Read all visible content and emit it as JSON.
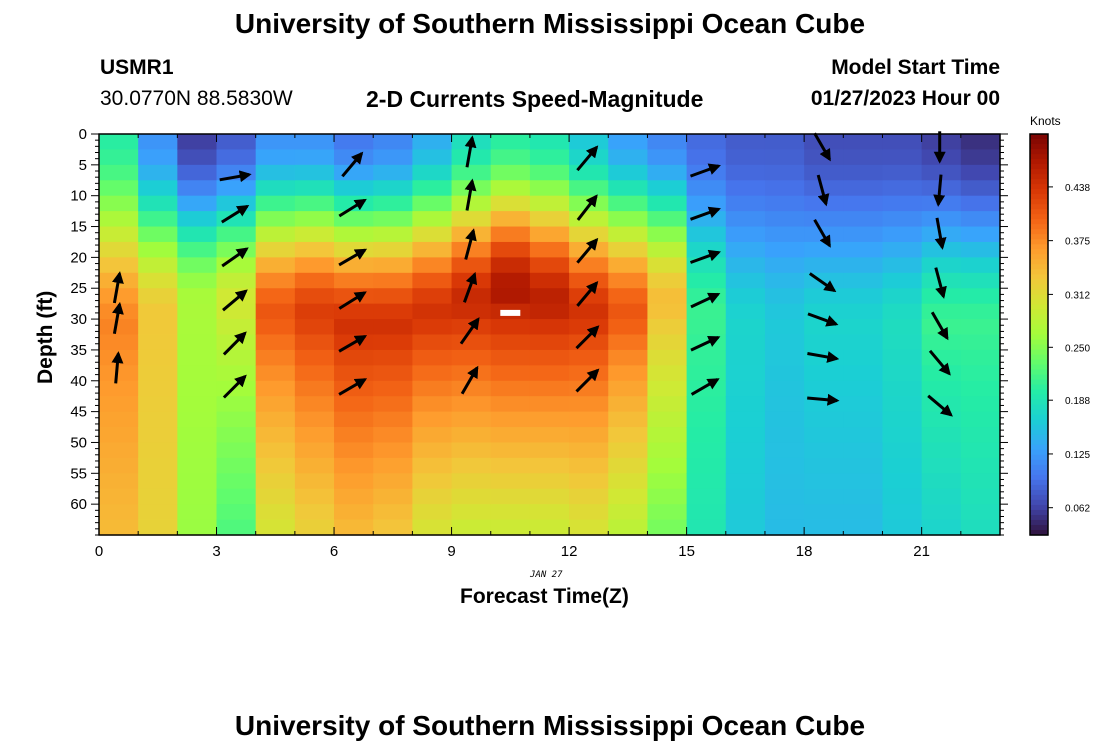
{
  "header": {
    "title": "University of Southern Mississippi Ocean Cube",
    "station_id": "USMR1",
    "coords": "30.0770N  88.5830W",
    "plot_title": "2-D Currents Speed-Magnitude",
    "model_start_label": "Model Start Time",
    "model_start_value": "01/27/2023 Hour 00",
    "date_note": "JAN 27",
    "footer_title": "University of Southern Mississippi Ocean Cube"
  },
  "colors": {
    "colormap": [
      "#30123b",
      "#4145ab",
      "#4675ed",
      "#39a2fc",
      "#1bcfd4",
      "#24eca6",
      "#61fc6c",
      "#a4fc3b",
      "#d1e834",
      "#f3c63a",
      "#fe9b2d",
      "#f36315",
      "#d93806",
      "#b11901",
      "#7a0403"
    ],
    "arrow": "#000000",
    "marker": "#ffffff"
  },
  "chart_data": {
    "type": "heatmap",
    "xlabel": "Forecast Time(Z)",
    "ylabel": "Depth (ft)",
    "xlim": [
      0,
      23
    ],
    "ylim": [
      0,
      65
    ],
    "y_inverted": true,
    "x_ticks": [
      0,
      3,
      6,
      9,
      12,
      15,
      18,
      21
    ],
    "y_ticks": [
      0,
      5,
      10,
      15,
      20,
      25,
      30,
      35,
      40,
      45,
      50,
      55,
      60
    ],
    "colorbar": {
      "title": "Knots",
      "range": [
        0.03,
        0.5
      ],
      "ticks": [
        "0.062",
        "0.125",
        "0.188",
        "0.250",
        "0.312",
        "0.375",
        "0.438"
      ]
    },
    "speed_profiles": [
      {
        "hour": 0,
        "top": 0.2,
        "core": 0.38,
        "core_depth": 32,
        "bottom": 0.34
      },
      {
        "hour": 1,
        "top": 0.12,
        "core": 0.33,
        "core_depth": 30,
        "bottom": 0.32
      },
      {
        "hour": 2,
        "top": 0.06,
        "core": 0.27,
        "core_depth": 28,
        "bottom": 0.26
      },
      {
        "hour": 3,
        "top": 0.08,
        "core": 0.3,
        "core_depth": 28,
        "bottom": 0.22
      },
      {
        "hour": 4,
        "top": 0.12,
        "core": 0.41,
        "core_depth": 30,
        "bottom": 0.3
      },
      {
        "hour": 5,
        "top": 0.12,
        "core": 0.43,
        "core_depth": 30,
        "bottom": 0.32
      },
      {
        "hour": 6,
        "top": 0.1,
        "core": 0.44,
        "core_depth": 32,
        "bottom": 0.34
      },
      {
        "hour": 7,
        "top": 0.11,
        "core": 0.44,
        "core_depth": 32,
        "bottom": 0.33
      },
      {
        "hour": 8,
        "top": 0.14,
        "core": 0.44,
        "core_depth": 30,
        "bottom": 0.3
      },
      {
        "hour": 9,
        "top": 0.18,
        "core": 0.45,
        "core_depth": 28,
        "bottom": 0.29
      },
      {
        "hour": 10,
        "top": 0.2,
        "core": 0.47,
        "core_depth": 26,
        "bottom": 0.29
      },
      {
        "hour": 11,
        "top": 0.19,
        "core": 0.46,
        "core_depth": 28,
        "bottom": 0.29
      },
      {
        "hour": 12,
        "top": 0.16,
        "core": 0.44,
        "core_depth": 30,
        "bottom": 0.3
      },
      {
        "hour": 13,
        "top": 0.13,
        "core": 0.41,
        "core_depth": 30,
        "bottom": 0.28
      },
      {
        "hour": 14,
        "top": 0.11,
        "core": 0.34,
        "core_depth": 28,
        "bottom": 0.24
      },
      {
        "hour": 15,
        "top": 0.09,
        "core": 0.21,
        "core_depth": 30,
        "bottom": 0.19
      },
      {
        "hour": 16,
        "top": 0.08,
        "core": 0.17,
        "core_depth": 32,
        "bottom": 0.16
      },
      {
        "hour": 17,
        "top": 0.08,
        "core": 0.16,
        "core_depth": 32,
        "bottom": 0.15
      },
      {
        "hour": 18,
        "top": 0.07,
        "core": 0.17,
        "core_depth": 32,
        "bottom": 0.15
      },
      {
        "hour": 19,
        "top": 0.07,
        "core": 0.17,
        "core_depth": 32,
        "bottom": 0.15
      },
      {
        "hour": 20,
        "top": 0.07,
        "core": 0.18,
        "core_depth": 32,
        "bottom": 0.16
      },
      {
        "hour": 21,
        "top": 0.06,
        "core": 0.21,
        "core_depth": 32,
        "bottom": 0.17
      },
      {
        "hour": 22,
        "top": 0.05,
        "core": 0.21,
        "core_depth": 32,
        "bottom": 0.18
      }
    ],
    "current_vectors": [
      {
        "hour": 0,
        "depths": [
          25,
          30,
          38
        ],
        "dir_deg": [
          10,
          10,
          5
        ],
        "len": [
          1.0,
          1.0,
          1.0
        ]
      },
      {
        "hour": 3,
        "depths": [
          7,
          13,
          20,
          27,
          34,
          41
        ],
        "dir_deg": [
          80,
          58,
          55,
          50,
          45,
          45
        ],
        "len": [
          1,
          1,
          1,
          1,
          1,
          1
        ]
      },
      {
        "hour": 6,
        "depths": [
          5,
          12,
          20,
          27,
          34,
          41
        ],
        "dir_deg": [
          40,
          58,
          60,
          58,
          60,
          60
        ],
        "len": [
          1,
          1,
          1,
          1,
          1,
          1
        ]
      },
      {
        "hour": 9,
        "depths": [
          3,
          10,
          18,
          25,
          32,
          40
        ],
        "dir_deg": [
          10,
          10,
          15,
          20,
          35,
          30
        ],
        "len": [
          1,
          1,
          1,
          1,
          1,
          1
        ]
      },
      {
        "hour": 12,
        "depths": [
          4,
          12,
          19,
          26,
          33,
          40
        ],
        "dir_deg": [
          40,
          38,
          40,
          40,
          45,
          45
        ],
        "len": [
          1,
          1,
          1,
          1,
          1,
          1
        ]
      },
      {
        "hour": 15,
        "depths": [
          6,
          13,
          20,
          27,
          34,
          41
        ],
        "dir_deg": [
          70,
          70,
          70,
          65,
          65,
          60
        ],
        "len": [
          1,
          1,
          1,
          1,
          1,
          1
        ]
      },
      {
        "hour": 18,
        "depths": [
          2,
          9,
          16,
          24,
          30,
          36,
          43
        ],
        "dir_deg": [
          150,
          165,
          150,
          125,
          110,
          100,
          95
        ],
        "len": [
          1,
          1,
          1,
          1,
          1,
          1,
          1
        ]
      },
      {
        "hour": 21,
        "depths": [
          2,
          9,
          16,
          24,
          31,
          37,
          44
        ],
        "dir_deg": [
          180,
          185,
          170,
          165,
          150,
          140,
          130
        ],
        "len": [
          1,
          1,
          1,
          1,
          1,
          1,
          1
        ]
      }
    ],
    "marker": {
      "hour": 10.5,
      "depth": 29
    }
  }
}
